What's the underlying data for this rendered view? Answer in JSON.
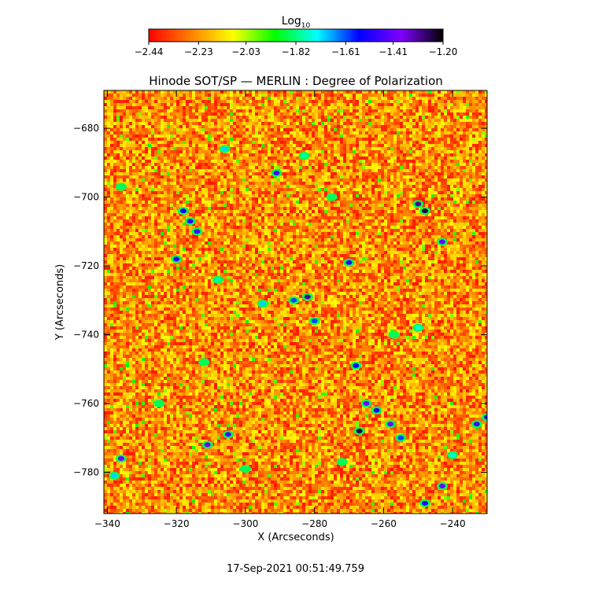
{
  "chart_data": {
    "type": "heatmap",
    "title": "Hinode SOT/SP — MERLIN : Degree of Polarization",
    "xlabel": "X (Arcseconds)",
    "ylabel": "Y (Arcseconds)",
    "xlim": [
      -341,
      -230
    ],
    "ylim": [
      -792,
      -669
    ],
    "x_ticks": [
      -340,
      -320,
      -300,
      -280,
      -260,
      -240
    ],
    "y_ticks": [
      -680,
      -700,
      -720,
      -740,
      -760,
      -780
    ],
    "colorbar": {
      "title_base": "Log",
      "title_sub": "10",
      "range": [
        -2.44,
        -1.2
      ],
      "ticks": [
        -2.44,
        -2.23,
        -2.03,
        -1.82,
        -1.61,
        -1.41,
        -1.2
      ],
      "colormap": [
        "#ff0000",
        "#ff8000",
        "#ffff00",
        "#00ff00",
        "#00ffff",
        "#0000ff",
        "#8000ff",
        "#000000"
      ]
    },
    "background_level": -2.25,
    "features": [
      {
        "x": -291,
        "y": -693,
        "level": -1.45
      },
      {
        "x": -318,
        "y": -704,
        "level": -1.55
      },
      {
        "x": -316,
        "y": -707,
        "level": -1.5
      },
      {
        "x": -314,
        "y": -710,
        "level": -1.45
      },
      {
        "x": -320,
        "y": -718,
        "level": -1.5
      },
      {
        "x": -250,
        "y": -702,
        "level": -1.3
      },
      {
        "x": -248,
        "y": -704,
        "level": -1.25
      },
      {
        "x": -243,
        "y": -713,
        "level": -1.4
      },
      {
        "x": -270,
        "y": -719,
        "level": -1.5
      },
      {
        "x": -282,
        "y": -729,
        "level": -1.3
      },
      {
        "x": -286,
        "y": -730,
        "level": -1.6
      },
      {
        "x": -295,
        "y": -731,
        "level": -1.7
      },
      {
        "x": -280,
        "y": -736,
        "level": -1.6
      },
      {
        "x": -268,
        "y": -749,
        "level": -1.55
      },
      {
        "x": -265,
        "y": -760,
        "level": -1.4
      },
      {
        "x": -262,
        "y": -762,
        "level": -1.5
      },
      {
        "x": -267,
        "y": -768,
        "level": -1.25
      },
      {
        "x": -258,
        "y": -766,
        "level": -1.4
      },
      {
        "x": -255,
        "y": -770,
        "level": -1.6
      },
      {
        "x": -305,
        "y": -769,
        "level": -1.45
      },
      {
        "x": -311,
        "y": -772,
        "level": -1.4
      },
      {
        "x": -336,
        "y": -776,
        "level": -1.4
      },
      {
        "x": -338,
        "y": -781,
        "level": -1.7
      },
      {
        "x": -233,
        "y": -766,
        "level": -1.45
      },
      {
        "x": -230,
        "y": -764,
        "level": -1.5
      },
      {
        "x": -243,
        "y": -784,
        "level": -1.4
      },
      {
        "x": -248,
        "y": -789,
        "level": -1.5
      },
      {
        "x": -240,
        "y": -775,
        "level": -1.75
      },
      {
        "x": -306,
        "y": -686,
        "level": -1.7
      },
      {
        "x": -283,
        "y": -688,
        "level": -1.8
      },
      {
        "x": -336,
        "y": -697,
        "level": -1.85
      },
      {
        "x": -308,
        "y": -724,
        "level": -1.8
      },
      {
        "x": -312,
        "y": -748,
        "level": -1.85
      },
      {
        "x": -272,
        "y": -777,
        "level": -1.85
      },
      {
        "x": -257,
        "y": -740,
        "level": -1.85
      },
      {
        "x": -250,
        "y": -738,
        "level": -1.75
      },
      {
        "x": -275,
        "y": -700,
        "level": -1.85
      },
      {
        "x": -325,
        "y": -760,
        "level": -1.85
      },
      {
        "x": -300,
        "y": -779,
        "level": -1.85
      }
    ]
  },
  "timestamp": "17-Sep-2021 00:51:49.759"
}
